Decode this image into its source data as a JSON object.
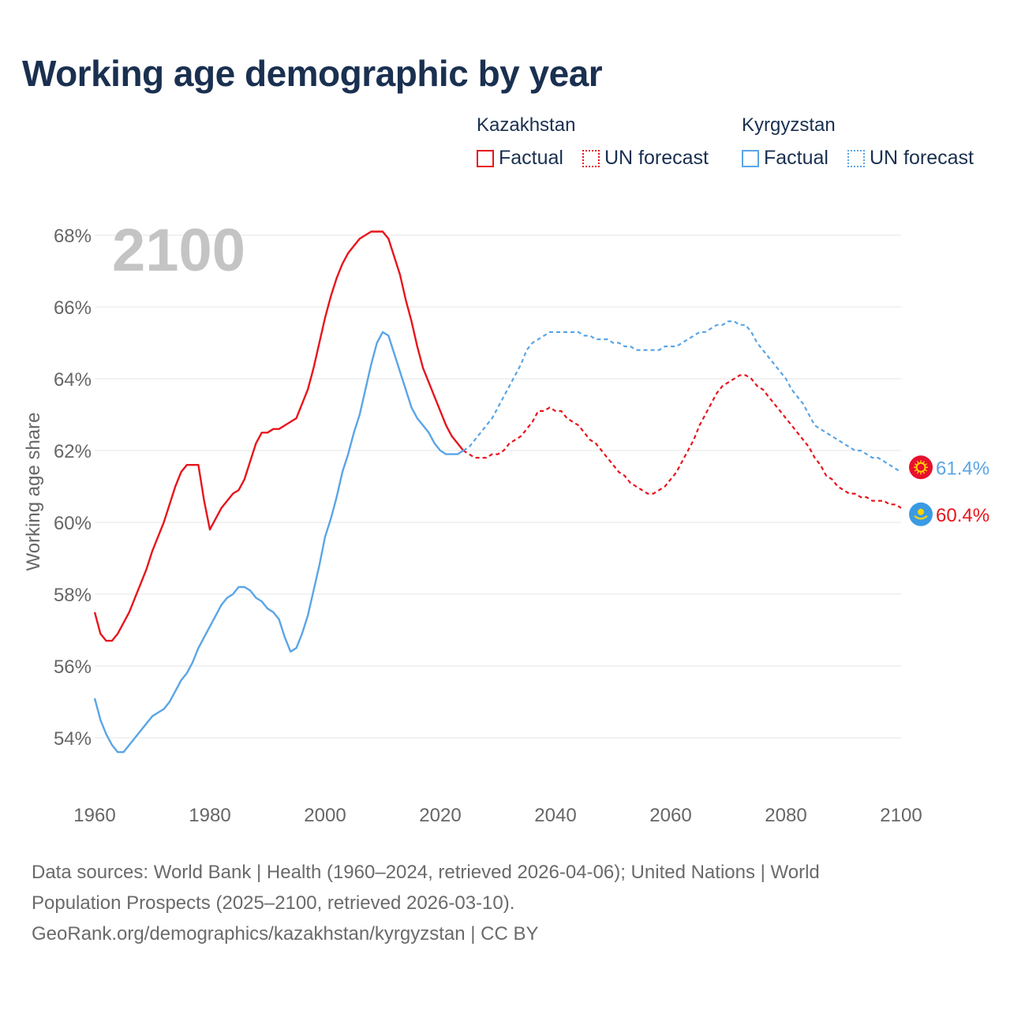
{
  "title": "Working age demographic by year",
  "legend": {
    "groups": [
      {
        "country": "Kazakhstan",
        "color": "#e8141c",
        "items": [
          {
            "label": "Factual",
            "style": "solid"
          },
          {
            "label": "UN forecast",
            "style": "dotted"
          }
        ]
      },
      {
        "country": "Kyrgyzstan",
        "color": "#5aa5e6",
        "items": [
          {
            "label": "Factual",
            "style": "solid"
          },
          {
            "label": "UN forecast",
            "style": "dotted"
          }
        ]
      }
    ]
  },
  "year_watermark": "2100",
  "footer": {
    "line1": "Data sources: World Bank | Health (1960–2024, retrieved 2026-04-06); United Nations | World",
    "line2": "Population Prospects (2025–2100, retrieved 2026-03-10).",
    "line3": "GeoRank.org/demographics/kazakhstan/kyrgyzstan | CC BY"
  },
  "chart_data": {
    "type": "line",
    "title": "Working age demographic by year",
    "xlabel": "",
    "ylabel": "Working age share",
    "xlim": [
      1960,
      2100
    ],
    "ylim": [
      53,
      69
    ],
    "x_ticks": [
      1960,
      1980,
      2000,
      2020,
      2040,
      2060,
      2080,
      2100
    ],
    "x_tick_labels": [
      "1960",
      "1980",
      "2000",
      "2020",
      "2040",
      "2060",
      "2080",
      "2100"
    ],
    "y_ticks": [
      54,
      56,
      58,
      60,
      62,
      64,
      66,
      68
    ],
    "y_tick_labels": [
      "54%",
      "56%",
      "58%",
      "60%",
      "62%",
      "64%",
      "66%",
      "68%"
    ],
    "grid": true,
    "series": [
      {
        "name": "Kazakhstan",
        "color": "#e8141c",
        "end_label": "60.4%",
        "end_icon": "kyrgyzstan-flag-icon",
        "factual": [
          [
            1960,
            57.5
          ],
          [
            1961,
            56.9
          ],
          [
            1962,
            56.7
          ],
          [
            1963,
            56.7
          ],
          [
            1964,
            56.9
          ],
          [
            1965,
            57.2
          ],
          [
            1966,
            57.5
          ],
          [
            1967,
            57.9
          ],
          [
            1968,
            58.3
          ],
          [
            1969,
            58.7
          ],
          [
            1970,
            59.2
          ],
          [
            1971,
            59.6
          ],
          [
            1972,
            60.0
          ],
          [
            1973,
            60.5
          ],
          [
            1974,
            61.0
          ],
          [
            1975,
            61.4
          ],
          [
            1976,
            61.6
          ],
          [
            1977,
            61.6
          ],
          [
            1978,
            61.6
          ],
          [
            1979,
            60.6
          ],
          [
            1980,
            59.8
          ],
          [
            1981,
            60.1
          ],
          [
            1982,
            60.4
          ],
          [
            1983,
            60.6
          ],
          [
            1984,
            60.8
          ],
          [
            1985,
            60.9
          ],
          [
            1986,
            61.2
          ],
          [
            1987,
            61.7
          ],
          [
            1988,
            62.2
          ],
          [
            1989,
            62.5
          ],
          [
            1990,
            62.5
          ],
          [
            1991,
            62.6
          ],
          [
            1992,
            62.6
          ],
          [
            1993,
            62.7
          ],
          [
            1994,
            62.8
          ],
          [
            1995,
            62.9
          ],
          [
            1996,
            63.3
          ],
          [
            1997,
            63.7
          ],
          [
            1998,
            64.3
          ],
          [
            1999,
            65.0
          ],
          [
            2000,
            65.7
          ],
          [
            2001,
            66.3
          ],
          [
            2002,
            66.8
          ],
          [
            2003,
            67.2
          ],
          [
            2004,
            67.5
          ],
          [
            2005,
            67.7
          ],
          [
            2006,
            67.9
          ],
          [
            2007,
            68.0
          ],
          [
            2008,
            68.1
          ],
          [
            2009,
            68.1
          ],
          [
            2010,
            68.1
          ],
          [
            2011,
            67.9
          ],
          [
            2012,
            67.4
          ],
          [
            2013,
            66.9
          ],
          [
            2014,
            66.2
          ],
          [
            2015,
            65.6
          ],
          [
            2016,
            64.9
          ],
          [
            2017,
            64.3
          ],
          [
            2018,
            63.9
          ],
          [
            2019,
            63.5
          ],
          [
            2020,
            63.1
          ],
          [
            2021,
            62.7
          ],
          [
            2022,
            62.4
          ],
          [
            2023,
            62.2
          ],
          [
            2024,
            62.0
          ]
        ],
        "forecast": [
          [
            2024,
            62.0
          ],
          [
            2025,
            61.9
          ],
          [
            2026,
            61.8
          ],
          [
            2027,
            61.8
          ],
          [
            2028,
            61.8
          ],
          [
            2029,
            61.9
          ],
          [
            2030,
            61.9
          ],
          [
            2031,
            62.0
          ],
          [
            2032,
            62.2
          ],
          [
            2033,
            62.3
          ],
          [
            2034,
            62.4
          ],
          [
            2035,
            62.6
          ],
          [
            2036,
            62.8
          ],
          [
            2037,
            63.1
          ],
          [
            2038,
            63.1
          ],
          [
            2039,
            63.2
          ],
          [
            2040,
            63.1
          ],
          [
            2041,
            63.1
          ],
          [
            2042,
            62.9
          ],
          [
            2043,
            62.8
          ],
          [
            2044,
            62.7
          ],
          [
            2045,
            62.5
          ],
          [
            2046,
            62.3
          ],
          [
            2047,
            62.2
          ],
          [
            2048,
            62.0
          ],
          [
            2049,
            61.8
          ],
          [
            2050,
            61.6
          ],
          [
            2051,
            61.4
          ],
          [
            2052,
            61.3
          ],
          [
            2053,
            61.1
          ],
          [
            2054,
            61.0
          ],
          [
            2055,
            60.9
          ],
          [
            2056,
            60.8
          ],
          [
            2057,
            60.8
          ],
          [
            2058,
            60.9
          ],
          [
            2059,
            61.0
          ],
          [
            2060,
            61.2
          ],
          [
            2061,
            61.4
          ],
          [
            2062,
            61.7
          ],
          [
            2063,
            62.0
          ],
          [
            2064,
            62.3
          ],
          [
            2065,
            62.7
          ],
          [
            2066,
            63.0
          ],
          [
            2067,
            63.3
          ],
          [
            2068,
            63.6
          ],
          [
            2069,
            63.8
          ],
          [
            2070,
            63.9
          ],
          [
            2071,
            64.0
          ],
          [
            2072,
            64.1
          ],
          [
            2073,
            64.1
          ],
          [
            2074,
            64.0
          ],
          [
            2075,
            63.8
          ],
          [
            2076,
            63.7
          ],
          [
            2077,
            63.5
          ],
          [
            2078,
            63.3
          ],
          [
            2079,
            63.1
          ],
          [
            2080,
            62.9
          ],
          [
            2081,
            62.7
          ],
          [
            2082,
            62.5
          ],
          [
            2083,
            62.3
          ],
          [
            2084,
            62.1
          ],
          [
            2085,
            61.8
          ],
          [
            2086,
            61.6
          ],
          [
            2087,
            61.3
          ],
          [
            2088,
            61.2
          ],
          [
            2089,
            61.0
          ],
          [
            2090,
            60.9
          ],
          [
            2091,
            60.8
          ],
          [
            2092,
            60.8
          ],
          [
            2093,
            60.7
          ],
          [
            2094,
            60.7
          ],
          [
            2095,
            60.6
          ],
          [
            2096,
            60.6
          ],
          [
            2097,
            60.6
          ],
          [
            2098,
            60.5
          ],
          [
            2099,
            60.5
          ],
          [
            2100,
            60.4
          ]
        ]
      },
      {
        "name": "Kyrgyzstan",
        "color": "#5aa5e6",
        "end_label": "61.4%",
        "end_icon": "kazakhstan-flag-icon",
        "factual": [
          [
            1960,
            55.1
          ],
          [
            1961,
            54.5
          ],
          [
            1962,
            54.1
          ],
          [
            1963,
            53.8
          ],
          [
            1964,
            53.6
          ],
          [
            1965,
            53.6
          ],
          [
            1966,
            53.8
          ],
          [
            1967,
            54.0
          ],
          [
            1968,
            54.2
          ],
          [
            1969,
            54.4
          ],
          [
            1970,
            54.6
          ],
          [
            1971,
            54.7
          ],
          [
            1972,
            54.8
          ],
          [
            1973,
            55.0
          ],
          [
            1974,
            55.3
          ],
          [
            1975,
            55.6
          ],
          [
            1976,
            55.8
          ],
          [
            1977,
            56.1
          ],
          [
            1978,
            56.5
          ],
          [
            1979,
            56.8
          ],
          [
            1980,
            57.1
          ],
          [
            1981,
            57.4
          ],
          [
            1982,
            57.7
          ],
          [
            1983,
            57.9
          ],
          [
            1984,
            58.0
          ],
          [
            1985,
            58.2
          ],
          [
            1986,
            58.2
          ],
          [
            1987,
            58.1
          ],
          [
            1988,
            57.9
          ],
          [
            1989,
            57.8
          ],
          [
            1990,
            57.6
          ],
          [
            1991,
            57.5
          ],
          [
            1992,
            57.3
          ],
          [
            1993,
            56.8
          ],
          [
            1994,
            56.4
          ],
          [
            1995,
            56.5
          ],
          [
            1996,
            56.9
          ],
          [
            1997,
            57.4
          ],
          [
            1998,
            58.1
          ],
          [
            1999,
            58.8
          ],
          [
            2000,
            59.6
          ],
          [
            2001,
            60.1
          ],
          [
            2002,
            60.7
          ],
          [
            2003,
            61.4
          ],
          [
            2004,
            61.9
          ],
          [
            2005,
            62.5
          ],
          [
            2006,
            63.0
          ],
          [
            2007,
            63.7
          ],
          [
            2008,
            64.4
          ],
          [
            2009,
            65.0
          ],
          [
            2010,
            65.3
          ],
          [
            2011,
            65.2
          ],
          [
            2012,
            64.7
          ],
          [
            2013,
            64.2
          ],
          [
            2014,
            63.7
          ],
          [
            2015,
            63.2
          ],
          [
            2016,
            62.9
          ],
          [
            2017,
            62.7
          ],
          [
            2018,
            62.5
          ],
          [
            2019,
            62.2
          ],
          [
            2020,
            62.0
          ],
          [
            2021,
            61.9
          ],
          [
            2022,
            61.9
          ],
          [
            2023,
            61.9
          ],
          [
            2024,
            62.0
          ]
        ],
        "forecast": [
          [
            2024,
            62.0
          ],
          [
            2025,
            62.1
          ],
          [
            2026,
            62.3
          ],
          [
            2027,
            62.5
          ],
          [
            2028,
            62.7
          ],
          [
            2029,
            62.9
          ],
          [
            2030,
            63.2
          ],
          [
            2031,
            63.5
          ],
          [
            2032,
            63.8
          ],
          [
            2033,
            64.1
          ],
          [
            2034,
            64.4
          ],
          [
            2035,
            64.8
          ],
          [
            2036,
            65.0
          ],
          [
            2037,
            65.1
          ],
          [
            2038,
            65.2
          ],
          [
            2039,
            65.3
          ],
          [
            2040,
            65.3
          ],
          [
            2041,
            65.3
          ],
          [
            2042,
            65.3
          ],
          [
            2043,
            65.3
          ],
          [
            2044,
            65.3
          ],
          [
            2045,
            65.2
          ],
          [
            2046,
            65.2
          ],
          [
            2047,
            65.1
          ],
          [
            2048,
            65.1
          ],
          [
            2049,
            65.1
          ],
          [
            2050,
            65.0
          ],
          [
            2051,
            65.0
          ],
          [
            2052,
            64.9
          ],
          [
            2053,
            64.9
          ],
          [
            2054,
            64.8
          ],
          [
            2055,
            64.8
          ],
          [
            2056,
            64.8
          ],
          [
            2057,
            64.8
          ],
          [
            2058,
            64.8
          ],
          [
            2059,
            64.9
          ],
          [
            2060,
            64.9
          ],
          [
            2061,
            64.9
          ],
          [
            2062,
            65.0
          ],
          [
            2063,
            65.1
          ],
          [
            2064,
            65.2
          ],
          [
            2065,
            65.3
          ],
          [
            2066,
            65.3
          ],
          [
            2067,
            65.4
          ],
          [
            2068,
            65.5
          ],
          [
            2069,
            65.5
          ],
          [
            2070,
            65.6
          ],
          [
            2071,
            65.6
          ],
          [
            2072,
            65.5
          ],
          [
            2073,
            65.5
          ],
          [
            2074,
            65.3
          ],
          [
            2075,
            65.0
          ],
          [
            2076,
            64.8
          ],
          [
            2077,
            64.6
          ],
          [
            2078,
            64.4
          ],
          [
            2079,
            64.2
          ],
          [
            2080,
            64.0
          ],
          [
            2081,
            63.7
          ],
          [
            2082,
            63.5
          ],
          [
            2083,
            63.3
          ],
          [
            2084,
            63.0
          ],
          [
            2085,
            62.7
          ],
          [
            2086,
            62.6
          ],
          [
            2087,
            62.5
          ],
          [
            2088,
            62.4
          ],
          [
            2089,
            62.3
          ],
          [
            2090,
            62.2
          ],
          [
            2091,
            62.1
          ],
          [
            2092,
            62.0
          ],
          [
            2093,
            62.0
          ],
          [
            2094,
            61.9
          ],
          [
            2095,
            61.8
          ],
          [
            2096,
            61.8
          ],
          [
            2097,
            61.7
          ],
          [
            2098,
            61.6
          ],
          [
            2099,
            61.5
          ],
          [
            2100,
            61.4
          ]
        ]
      }
    ]
  }
}
